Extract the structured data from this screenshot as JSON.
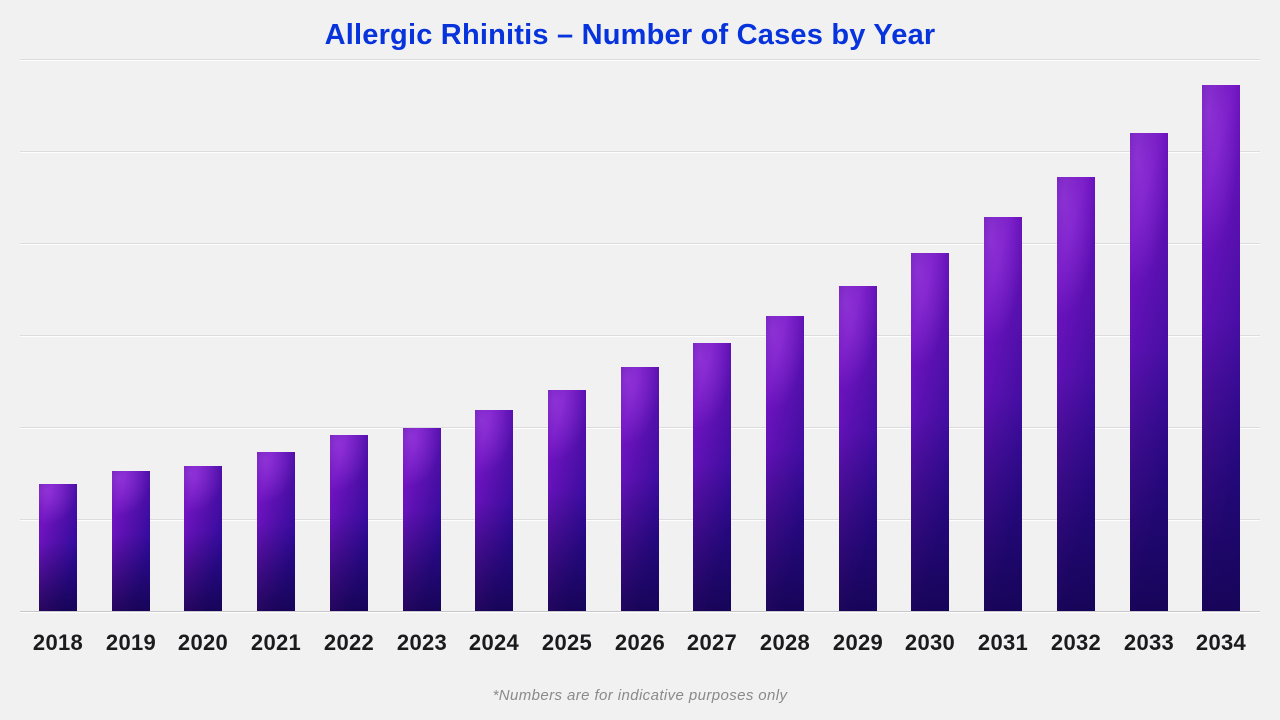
{
  "page": {
    "background_color": "#f1f1f2"
  },
  "header": {
    "title": "Allergic Rhinitis – Number of Cases by Year",
    "title_color": "#0733dc"
  },
  "footer": {
    "footnote": "*Numbers are for indicative purposes only"
  },
  "chart_data": {
    "type": "bar",
    "title": "Allergic Rhinitis – Number of Cases by Year",
    "categories": [
      "2018",
      "2019",
      "2020",
      "2021",
      "2022",
      "2023",
      "2024",
      "2025",
      "2026",
      "2027",
      "2028",
      "2029",
      "2030",
      "2031",
      "2032",
      "2033",
      "2034"
    ],
    "values": [
      127,
      140,
      145,
      159,
      176,
      183,
      201,
      221,
      244,
      268,
      295,
      325,
      358,
      394,
      434,
      478,
      526
    ],
    "value_basis": "relative units read from bar heights; chart shows no numeric y-axis labels",
    "xlabel": "",
    "ylabel": "",
    "ylim": [
      0,
      552
    ],
    "grid": true,
    "gridline_count": 7,
    "legend": "none",
    "bar_gradient_colors": [
      "#7013c1",
      "#4e0fa8",
      "#2f0b9d",
      "#0c045e"
    ],
    "x_tick_color": "#1b1b1d",
    "footnote": "*Numbers are for indicative purposes only"
  }
}
